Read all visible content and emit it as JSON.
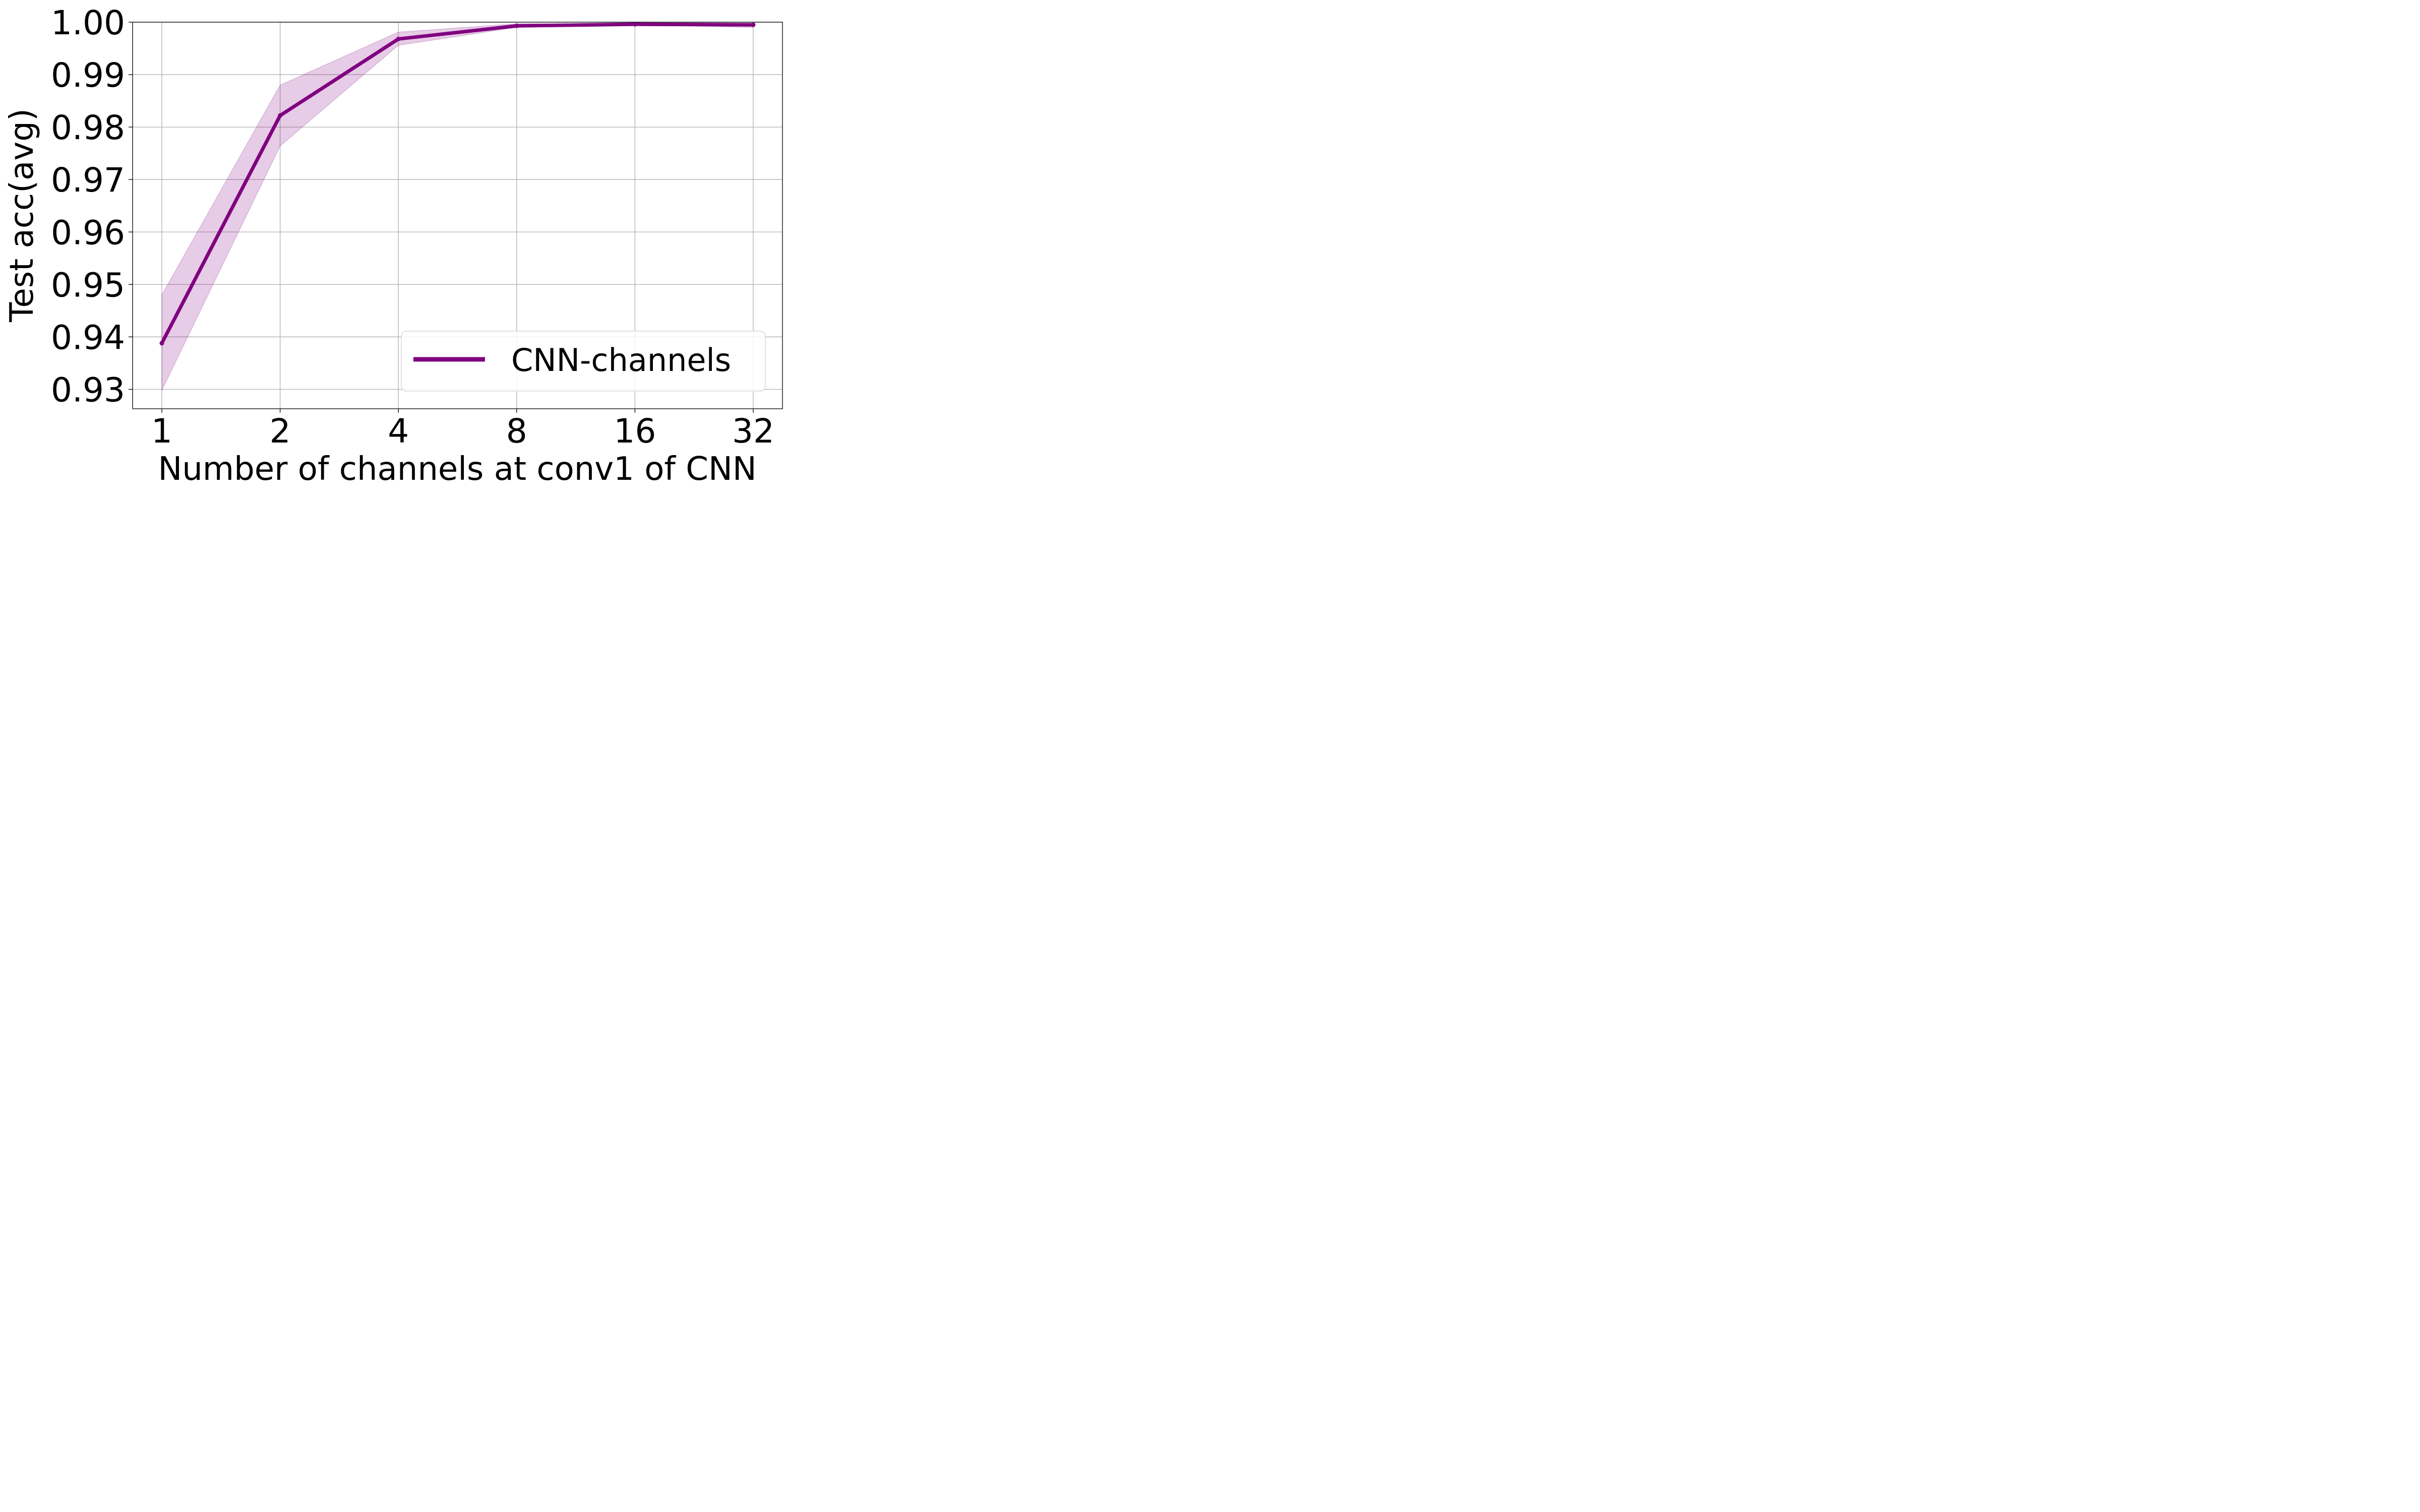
{
  "chart_data": {
    "type": "line",
    "xlabel": "Number of channels at conv1 of CNN",
    "ylabel": "Test acc(avg)",
    "categories": [
      "1",
      "2",
      "4",
      "8",
      "16",
      "32"
    ],
    "x": [
      1,
      2,
      4,
      8,
      16,
      32
    ],
    "x_scale": "log2",
    "ylim": [
      0.9263,
      1.0
    ],
    "yticks": [
      "0.93",
      "0.94",
      "0.95",
      "0.96",
      "0.97",
      "0.98",
      "0.99",
      "1.00"
    ],
    "ytick_values": [
      0.93,
      0.94,
      0.95,
      0.96,
      0.97,
      0.98,
      0.99,
      1.0
    ],
    "grid": true,
    "legend_position": "lower-right",
    "series": [
      {
        "name": "CNN-channels",
        "color": "#800080",
        "band_color": "#800080",
        "values": [
          0.9388,
          0.9822,
          0.9968,
          0.9993,
          0.9996,
          0.9995
        ],
        "lower": [
          0.9298,
          0.9764,
          0.9956,
          0.999,
          0.9995,
          0.999
        ],
        "upper": [
          0.948,
          0.988,
          0.9981,
          0.9997,
          0.9997,
          0.9998
        ]
      }
    ]
  }
}
